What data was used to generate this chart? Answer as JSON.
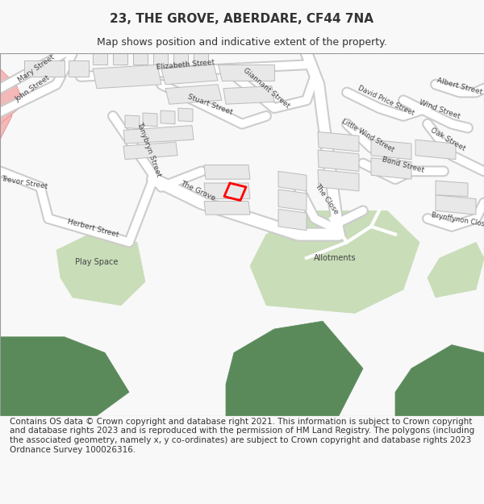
{
  "title": "23, THE GROVE, ABERDARE, CF44 7NA",
  "subtitle": "Map shows position and indicative extent of the property.",
  "footer": "Contains OS data © Crown copyright and database right 2021. This information is subject to Crown copyright and database rights 2023 and is reproduced with the permission of HM Land Registry. The polygons (including the associated geometry, namely x, y co-ordinates) are subject to Crown copyright and database rights 2023 Ordnance Survey 100026316.",
  "bg_color": "#f8f8f8",
  "map_bg": "#ffffff",
  "road_color": "#ffffff",
  "road_outline": "#cccccc",
  "building_fill": "#e8e8e8",
  "building_outline": "#bbbbbb",
  "green_light": "#c8ddb8",
  "green_dark": "#5a8a5a",
  "property_color": "#ff0000",
  "pink_area": "#f4b8b8",
  "text_color": "#333333",
  "title_fontsize": 11,
  "subtitle_fontsize": 9,
  "footer_fontsize": 7.5
}
